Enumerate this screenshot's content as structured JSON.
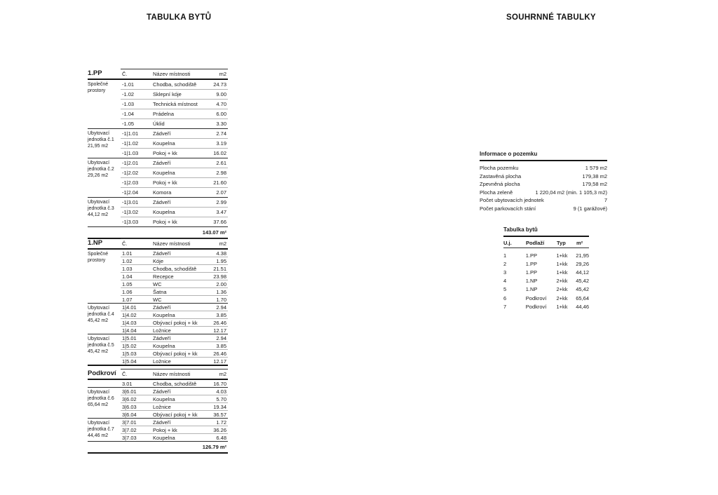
{
  "page": {
    "left_title": "TABULKA BYTŮ",
    "right_title": "SOUHRNNÉ TABULKY"
  },
  "floor_tables": [
    {
      "floor": "1.PP",
      "col_headers": {
        "num": "Č.",
        "name": "Název místnosti",
        "area": "m2"
      },
      "groups": [
        {
          "label": "Společné prostory",
          "rows": [
            {
              "num": "-1.01",
              "name": "Chodba, schodiště",
              "area": "24.73"
            },
            {
              "num": "-1.02",
              "name": "Sklepní kóje",
              "area": "9.00"
            },
            {
              "num": "-1.03",
              "name": "Technická místnost",
              "area": "4.70"
            },
            {
              "num": "-1.04",
              "name": "Prádelna",
              "area": "6.00"
            },
            {
              "num": "-1.05",
              "name": "Úklid",
              "area": "3.30"
            }
          ]
        },
        {
          "label": "Ubytovací jednotka č.1 21,95 m2",
          "rows": [
            {
              "num": "-1|1.01",
              "name": "Zádveří",
              "area": "2.74"
            },
            {
              "num": "-1|1.02",
              "name": "Koupelna",
              "area": "3.19"
            },
            {
              "num": "-1|1.03",
              "name": "Pokoj + kk",
              "area": "16.02"
            }
          ]
        },
        {
          "label": "Ubytovací jednotka č.2 29,26 m2",
          "rows": [
            {
              "num": "-1|2.01",
              "name": "Zádveří",
              "area": "2.61"
            },
            {
              "num": "-1|2.02",
              "name": "Koupelna",
              "area": "2.98"
            },
            {
              "num": "-1|2.03",
              "name": "Pokoj + kk",
              "area": "21.60"
            },
            {
              "num": "-1|2.04",
              "name": "Komora",
              "area": "2.07"
            }
          ]
        },
        {
          "label": "Ubytovací jednotka č.3 44,12 m2",
          "rows": [
            {
              "num": "-1|3.01",
              "name": "Zádveří",
              "area": "2.99"
            },
            {
              "num": "-1|3.02",
              "name": "Koupelna",
              "area": "3.47"
            },
            {
              "num": "-1|3.03",
              "name": "Pokoj + kk",
              "area": "37.66"
            }
          ]
        }
      ],
      "total": "143.07 m²"
    },
    {
      "floor": "1.NP",
      "col_headers": {
        "num": "Č.",
        "name": "Název místnosti",
        "area": "m2"
      },
      "groups": [
        {
          "label": "Společné prostory",
          "rows": [
            {
              "num": "1.01",
              "name": "Zádveří",
              "area": "4.38"
            },
            {
              "num": "1.02",
              "name": "Kóje",
              "area": "1.95"
            },
            {
              "num": "1.03",
              "name": "Chodba, schodiště",
              "area": "21.51"
            },
            {
              "num": "1.04",
              "name": "Recepce",
              "area": "23.98"
            },
            {
              "num": "1.05",
              "name": "WC",
              "area": "2.00"
            },
            {
              "num": "1.06",
              "name": "Šatna",
              "area": "1.36"
            },
            {
              "num": "1.07",
              "name": "WC",
              "area": "1.70"
            }
          ]
        },
        {
          "label": "Ubytovací jednotka č.4 45,42 m2",
          "rows": [
            {
              "num": "1|4.01",
              "name": "Zádveří",
              "area": "2.94"
            },
            {
              "num": "1|4.02",
              "name": "Koupelna",
              "area": "3.85"
            },
            {
              "num": "1|4.03",
              "name": "Obývací pokoj + kk",
              "area": "26.46"
            },
            {
              "num": "1|4.04",
              "name": "Ložnice",
              "area": "12.17"
            }
          ]
        },
        {
          "label": "Ubytovací jednotka č.5 45,42 m2",
          "rows": [
            {
              "num": "1|5.01",
              "name": "Zádveří",
              "area": "2.94"
            },
            {
              "num": "1|5.02",
              "name": "Koupelna",
              "area": "3.85"
            },
            {
              "num": "1|5.03",
              "name": "Obývací pokoj + kk",
              "area": "26.46"
            },
            {
              "num": "1|5.04",
              "name": "Ložnice",
              "area": "12.17"
            }
          ]
        }
      ],
      "total": null
    },
    {
      "floor": "Podkroví",
      "col_headers": {
        "num": "Č.",
        "name": "Název místnosti",
        "area": "m2"
      },
      "groups": [
        {
          "label": "",
          "rows": [
            {
              "num": "3.01",
              "name": "Chodba, schodiště",
              "area": "16.70"
            }
          ]
        },
        {
          "label": "Ubytovací jednotka č.6 65,64 m2",
          "rows": [
            {
              "num": "3|6.01",
              "name": "Zádveří",
              "area": "4.03"
            },
            {
              "num": "3|6.02",
              "name": "Koupelna",
              "area": "5.70"
            },
            {
              "num": "3|6.03",
              "name": "Ložnice",
              "area": "19.34"
            },
            {
              "num": "3|6.04",
              "name": "Obývací pokoj + kk",
              "area": "36.57"
            }
          ]
        },
        {
          "label": "Ubytovací jednotka č.7 44,46 m2",
          "rows": [
            {
              "num": "3|7.01",
              "name": "Zádveří",
              "area": "1.72"
            },
            {
              "num": "3|7.02",
              "name": "Pokoj + kk",
              "area": "36.26"
            },
            {
              "num": "3|7.03",
              "name": "Koupelna",
              "area": "6.48"
            }
          ]
        }
      ],
      "total": "126.79 m²"
    }
  ],
  "land_info": {
    "title": "Informace o pozemku",
    "rows": [
      {
        "label": "Plocha pozemku",
        "value": "1 579 m2"
      },
      {
        "label": "Zastavěná plocha",
        "value": "179,38 m2"
      },
      {
        "label": "Zpevněná plocha",
        "value": "179,58 m2"
      },
      {
        "label": "Plocha zeleně",
        "value": "1 220,04 m2 (min. 1 105,3 m2)"
      },
      {
        "label": "Počet ubytovacích jednotek",
        "value": "7"
      },
      {
        "label": "Počet parkovacích stání",
        "value": "9 (1 garážové)"
      }
    ]
  },
  "apartments_table": {
    "title": "Tabulka bytů",
    "headers": {
      "unit": "U.j.",
      "floor": "Podlaží",
      "type": "Typ",
      "area": "m²"
    },
    "rows": [
      {
        "unit": "1",
        "floor": "1.PP",
        "type": "1+kk",
        "area": "21,95"
      },
      {
        "unit": "2",
        "floor": "1.PP",
        "type": "1+kk",
        "area": "29,26"
      },
      {
        "unit": "3",
        "floor": "1.PP",
        "type": "1+kk",
        "area": "44,12"
      },
      {
        "unit": "4",
        "floor": "1.NP",
        "type": "2+kk",
        "area": "45,42"
      },
      {
        "unit": "5",
        "floor": "1.NP",
        "type": "2+kk",
        "area": "45,42"
      },
      {
        "unit": "6",
        "floor": "Podkroví",
        "type": "2+kk",
        "area": "65,64"
      },
      {
        "unit": "7",
        "floor": "Podkroví",
        "type": "1+kk",
        "area": "44,46"
      }
    ]
  }
}
